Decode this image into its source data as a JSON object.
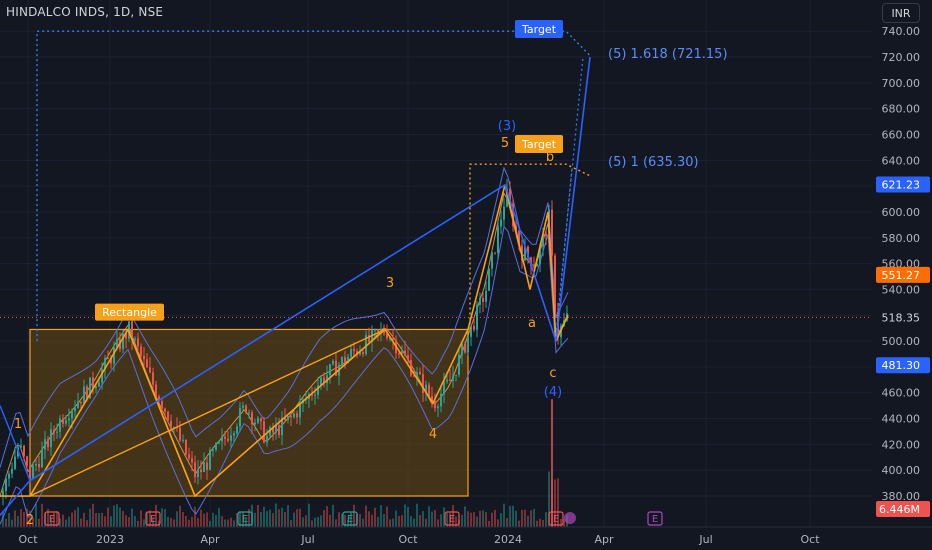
{
  "header": {
    "symbol_line": "HINDALCO INDS, 1D, NSE",
    "currency": "INR"
  },
  "colors": {
    "background": "#131722",
    "grid": "#1c2030",
    "axis_text": "#b2b5be",
    "candle_up": "#26a69a",
    "candle_down": "#ef5350",
    "wave_orange": "#f7a11a",
    "wave_blue": "#2962ff",
    "bollinger": "#5b6fd6",
    "rectangle_fill": "#6b4a12",
    "target_blue": "#3a7cf5"
  },
  "chart_data": {
    "type": "candlestick",
    "x_tick_labels": [
      "Oct",
      "2023",
      "Apr",
      "Jul",
      "Oct",
      "2024",
      "Apr",
      "Jul",
      "Oct"
    ],
    "y_ticks": [
      380,
      400,
      420,
      440,
      460,
      480,
      500,
      520,
      540,
      560,
      580,
      600,
      620,
      640,
      660,
      680,
      700,
      720,
      740
    ],
    "y_tick_labels": [
      "380.00",
      "400.00",
      "420.00",
      "440.00",
      "460.00",
      "480.00",
      "500.00",
      "520.00",
      "540.00",
      "560.00",
      "580.00",
      "600.00",
      "620.00",
      "640.00",
      "660.00",
      "680.00",
      "700.00",
      "720.00",
      "740.00"
    ],
    "ylim": [
      356,
      751
    ],
    "grid": true,
    "price_labels": [
      {
        "value": 621.23,
        "text": "621.23",
        "color": "#2962ff"
      },
      {
        "value": 551.27,
        "text": "551.27",
        "color": "#ff6d00"
      },
      {
        "value": 518.35,
        "text": "518.35",
        "color": "#131722"
      },
      {
        "value": 481.3,
        "text": "481.30",
        "color": "#2962ff"
      }
    ],
    "volume_label": {
      "text": "6.446M",
      "color": "#ef5350"
    },
    "last_price_line": 518.35,
    "rectangle": {
      "label": "Rectangle",
      "top_price": 509,
      "bottom_price": 380
    },
    "fib_targets": [
      {
        "text": "(5) 1.618 (721.15)",
        "price": 721.15
      },
      {
        "text": "(5) 1 (635.30)",
        "price": 635.3
      }
    ],
    "target_boxes": [
      {
        "label": "Target",
        "color": "#2962ff"
      },
      {
        "label": "Target",
        "color": "#f7a11a"
      }
    ],
    "wave_labels": [
      {
        "text": "1",
        "color": "#f7a11a"
      },
      {
        "text": "2",
        "color": "#f7a11a"
      },
      {
        "text": "3",
        "color": "#f7a11a"
      },
      {
        "text": "4",
        "color": "#f7a11a"
      },
      {
        "text": "5",
        "color": "#f7a11a"
      },
      {
        "text": "(3)",
        "color": "#2962ff"
      },
      {
        "text": "(4)",
        "color": "#2962ff"
      },
      {
        "text": "a",
        "color": "#f7a11a"
      },
      {
        "text": "b",
        "color": "#f7a11a"
      },
      {
        "text": "c",
        "color": "#f7a11a"
      }
    ],
    "event_markers": [
      "E",
      "E",
      "E",
      "E",
      "E",
      "E",
      "E"
    ]
  }
}
